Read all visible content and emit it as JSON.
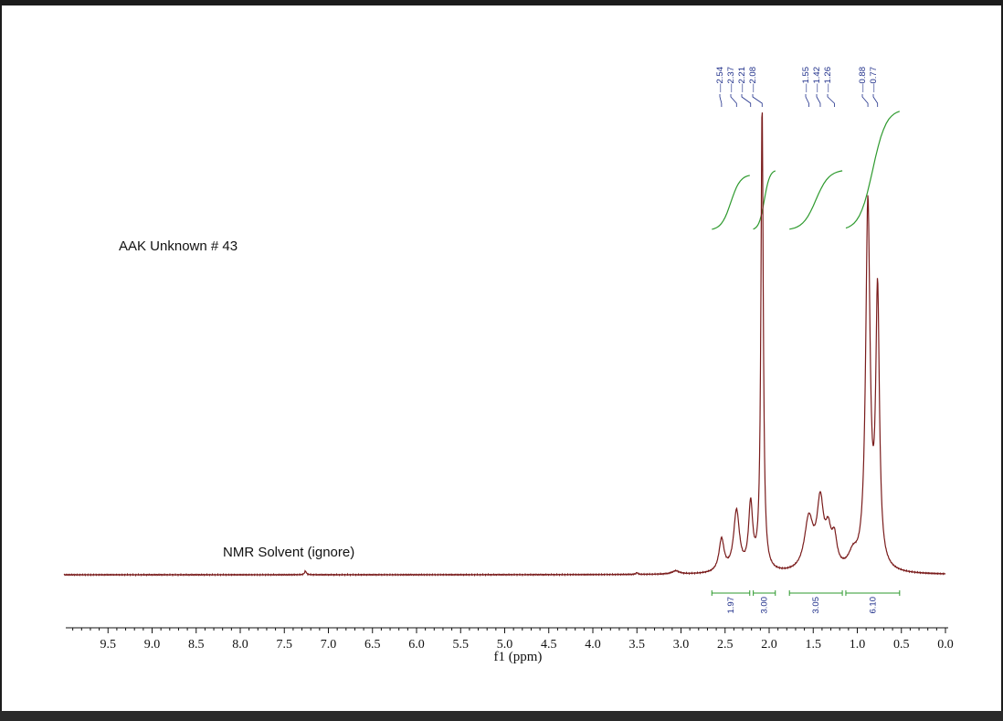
{
  "chart_data": {
    "type": "line",
    "title": "",
    "xlabel": "f1 (ppm)",
    "ylabel": "",
    "xlim": [
      10.0,
      0.0
    ],
    "x_reversed": true,
    "grid": false,
    "x_ticks": [
      "9.5",
      "9.0",
      "8.5",
      "8.0",
      "7.5",
      "7.0",
      "6.5",
      "6.0",
      "5.5",
      "5.0",
      "4.5",
      "4.0",
      "3.5",
      "3.0",
      "2.5",
      "2.0",
      "1.5",
      "1.0",
      "0.5",
      "0.0"
    ],
    "annotations": [
      {
        "text": "AAK Unknown # 43"
      },
      {
        "text": "NMR Solvent (ignore)",
        "ppm": 7.26
      }
    ],
    "peak_labels": [
      "2.54",
      "2.37",
      "2.21",
      "2.08",
      "1.55",
      "1.42",
      "1.26",
      "0.88",
      "0.77"
    ],
    "peaks": [
      {
        "ppm": 7.26,
        "height": 0.008,
        "width": 0.012
      },
      {
        "ppm": 3.5,
        "height": 0.004,
        "width": 0.012
      },
      {
        "ppm": 3.06,
        "height": 0.007,
        "width": 0.05
      },
      {
        "ppm": 2.54,
        "height": 0.07,
        "width": 0.035
      },
      {
        "ppm": 2.37,
        "height": 0.13,
        "width": 0.04
      },
      {
        "ppm": 2.21,
        "height": 0.14,
        "width": 0.028
      },
      {
        "ppm": 2.08,
        "height": 1.0,
        "width": 0.016
      },
      {
        "ppm": 1.55,
        "height": 0.11,
        "width": 0.06
      },
      {
        "ppm": 1.42,
        "height": 0.14,
        "width": 0.045
      },
      {
        "ppm": 1.33,
        "height": 0.07,
        "width": 0.04
      },
      {
        "ppm": 1.26,
        "height": 0.06,
        "width": 0.035
      },
      {
        "ppm": 1.05,
        "height": 0.03,
        "width": 0.06
      },
      {
        "ppm": 0.88,
        "height": 0.78,
        "width": 0.03
      },
      {
        "ppm": 0.77,
        "height": 0.58,
        "width": 0.025
      }
    ],
    "integrals": [
      {
        "from": 2.65,
        "to": 2.22,
        "value": "1.97",
        "curve_height": 0.12
      },
      {
        "from": 2.18,
        "to": 1.93,
        "value": "3.00",
        "curve_height": 0.13
      },
      {
        "from": 1.77,
        "to": 1.17,
        "value": "3.05",
        "curve_height": 0.13
      },
      {
        "from": 1.13,
        "to": 0.52,
        "value": "6.10",
        "curve_height": 0.26
      }
    ],
    "colors": {
      "spectrum": "#7a1c1c",
      "integral": "#2e9a2e",
      "label": "#1f2f8a",
      "axis": "#111111"
    }
  }
}
